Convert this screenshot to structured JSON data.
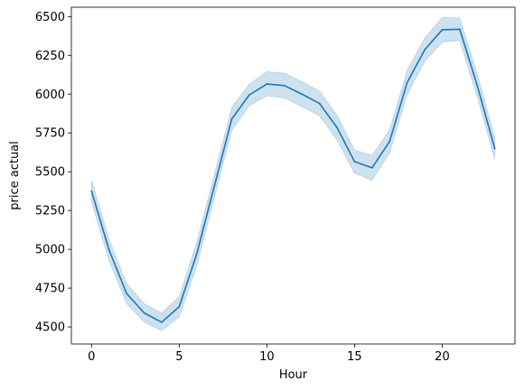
{
  "chart_data": {
    "type": "line",
    "xlabel": "Hour",
    "ylabel": "price actual",
    "xlim": [
      -1.15,
      24.15
    ],
    "ylim": [
      4390,
      6560
    ],
    "xticks": [
      0,
      5,
      10,
      15,
      20
    ],
    "yticks": [
      4500,
      4750,
      5000,
      5250,
      5500,
      5750,
      6000,
      6250,
      6500
    ],
    "grid": false,
    "legend": "none",
    "colors": {
      "line": "#1f77b4",
      "band": "#1f77b4",
      "axes": "#000000"
    },
    "series": [
      {
        "x": [
          0,
          1,
          2,
          3,
          4,
          5,
          6,
          7,
          8,
          9,
          10,
          11,
          12,
          13,
          14,
          15,
          16,
          17,
          18,
          19,
          20,
          21,
          22,
          23
        ],
        "values": [
          5375,
          4995,
          4715,
          4590,
          4530,
          4630,
          4970,
          5405,
          5840,
          5995,
          6065,
          6055,
          6000,
          5940,
          5785,
          5565,
          5525,
          5695,
          6075,
          6285,
          6415,
          6418,
          6055,
          5648
        ],
        "ci_low": [
          5305,
          4925,
          4650,
          4530,
          4475,
          4565,
          4890,
          5330,
          5765,
          5925,
          5990,
          5975,
          5920,
          5860,
          5705,
          5490,
          5445,
          5620,
          5995,
          6210,
          6335,
          6345,
          5980,
          5580
        ],
        "ci_high": [
          5445,
          5065,
          4780,
          4650,
          4590,
          4695,
          5045,
          5480,
          5915,
          6065,
          6145,
          6135,
          6080,
          6020,
          5865,
          5640,
          5605,
          5770,
          6155,
          6360,
          6495,
          6490,
          6130,
          5718
        ]
      }
    ]
  }
}
